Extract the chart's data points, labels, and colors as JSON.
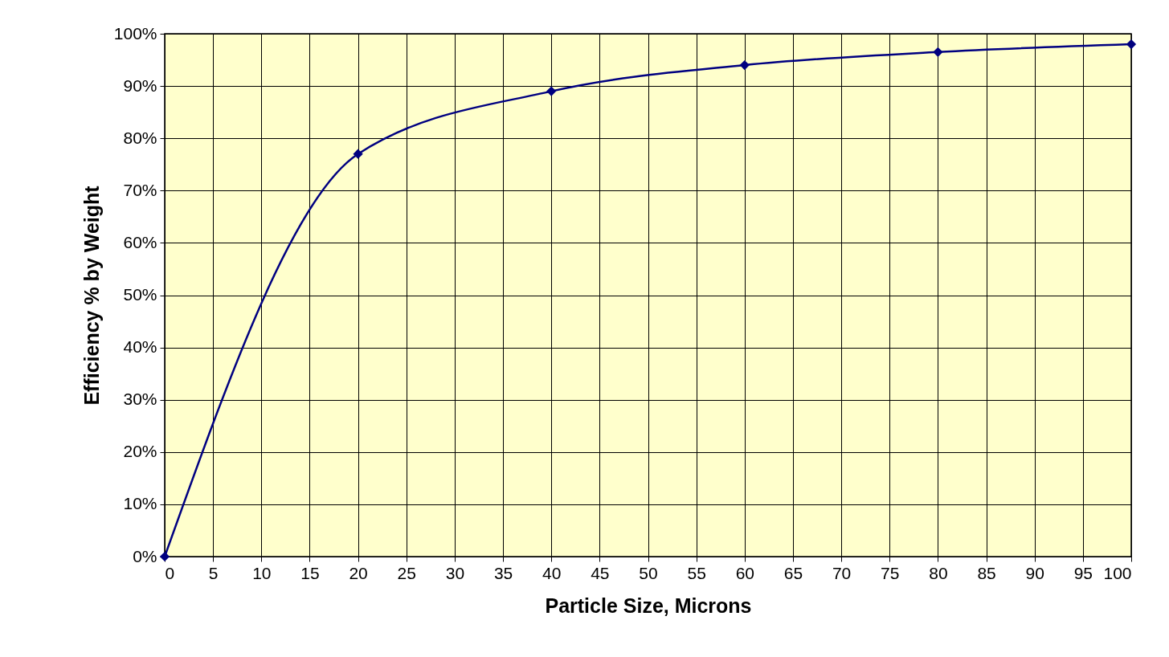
{
  "chart_data": {
    "type": "line",
    "xlabel": "Particle Size, Microns",
    "ylabel": "Efficiency % by Weight",
    "x": [
      0,
      20,
      40,
      60,
      80,
      100
    ],
    "series": [
      {
        "color": "#000080",
        "values": [
          0,
          77,
          89,
          94,
          96.5,
          98
        ]
      }
    ],
    "xlim": [
      0,
      100
    ],
    "xticks": [
      0,
      5,
      10,
      15,
      20,
      25,
      30,
      35,
      40,
      45,
      50,
      55,
      60,
      65,
      70,
      75,
      80,
      85,
      90,
      95,
      100
    ],
    "ylim": [
      0,
      100
    ],
    "yticks": [
      {
        "value": 0,
        "label": "0%"
      },
      {
        "value": 10,
        "label": "10%"
      },
      {
        "value": 20,
        "label": "20%"
      },
      {
        "value": 30,
        "label": "30%"
      },
      {
        "value": 40,
        "label": "40%"
      },
      {
        "value": 50,
        "label": "50%"
      },
      {
        "value": 60,
        "label": "60%"
      },
      {
        "value": 70,
        "label": "70%"
      },
      {
        "value": 80,
        "label": "80%"
      },
      {
        "value": 90,
        "label": "90%"
      },
      {
        "value": 100,
        "label": "100%"
      }
    ],
    "grid": true,
    "marker": "diamond",
    "line_style": "solid"
  }
}
